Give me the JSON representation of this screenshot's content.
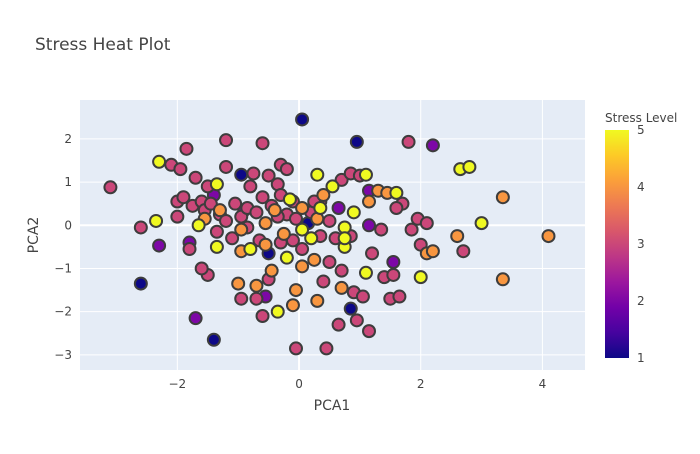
{
  "chart_data": {
    "type": "scatter",
    "title": "Stress Heat Plot",
    "xlabel": "PCA1",
    "ylabel": "PCA2",
    "xlim": [
      -3.6,
      4.7
    ],
    "ylim": [
      -3.35,
      2.9
    ],
    "xticks": [
      -2,
      0,
      2,
      4
    ],
    "yticks": [
      -3,
      -2,
      -1,
      0,
      1,
      2
    ],
    "grid": true,
    "colorbar": {
      "title": "Stress Level",
      "min": 1,
      "max": 5,
      "ticks": [
        1,
        2,
        3,
        4,
        5
      ],
      "colors": [
        "#0d0887",
        "#46039f",
        "#7201a8",
        "#9c179e",
        "#bd3786",
        "#d8576b",
        "#ed7953",
        "#fb9f3a",
        "#fdca26",
        "#f0f921"
      ]
    },
    "points": [
      {
        "x": 0.05,
        "y": 2.45,
        "stress": 1
      },
      {
        "x": 0.95,
        "y": 1.93,
        "stress": 1
      },
      {
        "x": -2.6,
        "y": -1.35,
        "stress": 1
      },
      {
        "x": -1.4,
        "y": -2.65,
        "stress": 1
      },
      {
        "x": -0.95,
        "y": 1.17,
        "stress": 1
      },
      {
        "x": -0.5,
        "y": -0.65,
        "stress": 1
      },
      {
        "x": 0.85,
        "y": -1.93,
        "stress": 1
      },
      {
        "x": 0.15,
        "y": 0.05,
        "stress": 1
      },
      {
        "x": 2.2,
        "y": 1.85,
        "stress": 2
      },
      {
        "x": -2.3,
        "y": -0.47,
        "stress": 2
      },
      {
        "x": -1.7,
        "y": -2.15,
        "stress": 2
      },
      {
        "x": 1.55,
        "y": -0.85,
        "stress": 2
      },
      {
        "x": -0.55,
        "y": -1.65,
        "stress": 2
      },
      {
        "x": 1.15,
        "y": 0.0,
        "stress": 2
      },
      {
        "x": 1.15,
        "y": 0.8,
        "stress": 2
      },
      {
        "x": -1.4,
        "y": 0.7,
        "stress": 2
      },
      {
        "x": -0.9,
        "y": 0.35,
        "stress": 2
      },
      {
        "x": -1.8,
        "y": -0.4,
        "stress": 2
      },
      {
        "x": 0.65,
        "y": 0.4,
        "stress": 2
      },
      {
        "x": -3.1,
        "y": 0.88,
        "stress": 3
      },
      {
        "x": -2.6,
        "y": -0.05,
        "stress": 3
      },
      {
        "x": -1.85,
        "y": 1.77,
        "stress": 3
      },
      {
        "x": -1.2,
        "y": 1.97,
        "stress": 3
      },
      {
        "x": -0.6,
        "y": 1.9,
        "stress": 3
      },
      {
        "x": -0.3,
        "y": 1.4,
        "stress": 3
      },
      {
        "x": -2.1,
        "y": 1.4,
        "stress": 3
      },
      {
        "x": -1.95,
        "y": 1.3,
        "stress": 3
      },
      {
        "x": -1.7,
        "y": 1.1,
        "stress": 3
      },
      {
        "x": -1.5,
        "y": 0.9,
        "stress": 3
      },
      {
        "x": -1.2,
        "y": 1.35,
        "stress": 3
      },
      {
        "x": -0.8,
        "y": 0.9,
        "stress": 3
      },
      {
        "x": -0.75,
        "y": 1.2,
        "stress": 3
      },
      {
        "x": -0.5,
        "y": 1.15,
        "stress": 3
      },
      {
        "x": -0.35,
        "y": 0.95,
        "stress": 3
      },
      {
        "x": -0.2,
        "y": 1.3,
        "stress": 3
      },
      {
        "x": -2.0,
        "y": 0.55,
        "stress": 3
      },
      {
        "x": -1.9,
        "y": 0.65,
        "stress": 3
      },
      {
        "x": -1.75,
        "y": 0.45,
        "stress": 3
      },
      {
        "x": -1.6,
        "y": 0.55,
        "stress": 3
      },
      {
        "x": -1.55,
        "y": 0.35,
        "stress": 3
      },
      {
        "x": -1.45,
        "y": 0.5,
        "stress": 3
      },
      {
        "x": -1.3,
        "y": 0.25,
        "stress": 3
      },
      {
        "x": -1.2,
        "y": 0.1,
        "stress": 3
      },
      {
        "x": -1.35,
        "y": -0.15,
        "stress": 3
      },
      {
        "x": -1.05,
        "y": 0.5,
        "stress": 3
      },
      {
        "x": -0.95,
        "y": 0.2,
        "stress": 3
      },
      {
        "x": -0.85,
        "y": 0.4,
        "stress": 3
      },
      {
        "x": -0.7,
        "y": 0.3,
        "stress": 3
      },
      {
        "x": -0.6,
        "y": 0.65,
        "stress": 3
      },
      {
        "x": -0.45,
        "y": 0.45,
        "stress": 3
      },
      {
        "x": -0.3,
        "y": 0.7,
        "stress": 3
      },
      {
        "x": -0.2,
        "y": 0.25,
        "stress": 3
      },
      {
        "x": -0.1,
        "y": 0.55,
        "stress": 3
      },
      {
        "x": -0.05,
        "y": 0.15,
        "stress": 3
      },
      {
        "x": 0.2,
        "y": 0.3,
        "stress": 3
      },
      {
        "x": 0.35,
        "y": 0.55,
        "stress": 3
      },
      {
        "x": 0.5,
        "y": 0.1,
        "stress": 3
      },
      {
        "x": 0.7,
        "y": 1.05,
        "stress": 3
      },
      {
        "x": 0.85,
        "y": 1.2,
        "stress": 3
      },
      {
        "x": 1.0,
        "y": 1.15,
        "stress": 3
      },
      {
        "x": 1.8,
        "y": 1.93,
        "stress": 3
      },
      {
        "x": 1.7,
        "y": 0.5,
        "stress": 3
      },
      {
        "x": 1.95,
        "y": 0.15,
        "stress": 3
      },
      {
        "x": 1.85,
        "y": -0.1,
        "stress": 3
      },
      {
        "x": 2.1,
        "y": 0.05,
        "stress": 3
      },
      {
        "x": 2.0,
        "y": -0.45,
        "stress": 3
      },
      {
        "x": 2.7,
        "y": -0.6,
        "stress": 3
      },
      {
        "x": 1.35,
        "y": -0.1,
        "stress": 3
      },
      {
        "x": 1.4,
        "y": -1.2,
        "stress": 3
      },
      {
        "x": 1.55,
        "y": -1.15,
        "stress": 3
      },
      {
        "x": 1.5,
        "y": -1.7,
        "stress": 3
      },
      {
        "x": 1.65,
        "y": -1.65,
        "stress": 3
      },
      {
        "x": 1.15,
        "y": -2.45,
        "stress": 3
      },
      {
        "x": 0.95,
        "y": -2.2,
        "stress": 3
      },
      {
        "x": 0.9,
        "y": -1.55,
        "stress": 3
      },
      {
        "x": 0.7,
        "y": -1.05,
        "stress": 3
      },
      {
        "x": 0.5,
        "y": -0.85,
        "stress": 3
      },
      {
        "x": 0.4,
        "y": -1.3,
        "stress": 3
      },
      {
        "x": 0.65,
        "y": -2.3,
        "stress": 3
      },
      {
        "x": 0.45,
        "y": -2.85,
        "stress": 3
      },
      {
        "x": -0.05,
        "y": -2.85,
        "stress": 3
      },
      {
        "x": -0.6,
        "y": -2.1,
        "stress": 3
      },
      {
        "x": -0.95,
        "y": -1.7,
        "stress": 3
      },
      {
        "x": -0.7,
        "y": -1.7,
        "stress": 3
      },
      {
        "x": -1.5,
        "y": -1.15,
        "stress": 3
      },
      {
        "x": -1.6,
        "y": -1.0,
        "stress": 3
      },
      {
        "x": -1.8,
        "y": -0.55,
        "stress": 3
      },
      {
        "x": -0.5,
        "y": -1.25,
        "stress": 3
      },
      {
        "x": -0.65,
        "y": -0.35,
        "stress": 3
      },
      {
        "x": -0.3,
        "y": -0.4,
        "stress": 3
      },
      {
        "x": -0.1,
        "y": -0.35,
        "stress": 3
      },
      {
        "x": 0.35,
        "y": -0.25,
        "stress": 3
      },
      {
        "x": 0.6,
        "y": -0.3,
        "stress": 3
      },
      {
        "x": 0.85,
        "y": -0.25,
        "stress": 3
      },
      {
        "x": -1.1,
        "y": -0.3,
        "stress": 3
      },
      {
        "x": -0.85,
        "y": -0.05,
        "stress": 3
      },
      {
        "x": -2.0,
        "y": 0.2,
        "stress": 3
      },
      {
        "x": 0.25,
        "y": 0.55,
        "stress": 3
      },
      {
        "x": 1.6,
        "y": 0.4,
        "stress": 3
      },
      {
        "x": 1.2,
        "y": -0.65,
        "stress": 3
      },
      {
        "x": 1.05,
        "y": -1.65,
        "stress": 3
      },
      {
        "x": -0.35,
        "y": 0.2,
        "stress": 3
      },
      {
        "x": 0.05,
        "y": -0.55,
        "stress": 3
      },
      {
        "x": -1.0,
        "y": -1.35,
        "stress": 4
      },
      {
        "x": -0.7,
        "y": -1.4,
        "stress": 4
      },
      {
        "x": -0.45,
        "y": -1.05,
        "stress": 4
      },
      {
        "x": -0.05,
        "y": -1.5,
        "stress": 4
      },
      {
        "x": -0.1,
        "y": -1.85,
        "stress": 4
      },
      {
        "x": 0.3,
        "y": -1.75,
        "stress": 4
      },
      {
        "x": 0.7,
        "y": -1.45,
        "stress": 4
      },
      {
        "x": 0.25,
        "y": -0.8,
        "stress": 4
      },
      {
        "x": 0.05,
        "y": -0.95,
        "stress": 4
      },
      {
        "x": -0.95,
        "y": -0.6,
        "stress": 4
      },
      {
        "x": -0.55,
        "y": -0.45,
        "stress": 4
      },
      {
        "x": -0.25,
        "y": -0.2,
        "stress": 4
      },
      {
        "x": 0.05,
        "y": 0.4,
        "stress": 4
      },
      {
        "x": 0.4,
        "y": 0.7,
        "stress": 4
      },
      {
        "x": 1.3,
        "y": 0.8,
        "stress": 4
      },
      {
        "x": 1.15,
        "y": 0.55,
        "stress": 4
      },
      {
        "x": 1.45,
        "y": 0.75,
        "stress": 4
      },
      {
        "x": 2.1,
        "y": -0.65,
        "stress": 4
      },
      {
        "x": 2.2,
        "y": -0.6,
        "stress": 4
      },
      {
        "x": 2.6,
        "y": -0.25,
        "stress": 4
      },
      {
        "x": 3.35,
        "y": 0.65,
        "stress": 4
      },
      {
        "x": 3.35,
        "y": -1.25,
        "stress": 4
      },
      {
        "x": 4.1,
        "y": -0.25,
        "stress": 4
      },
      {
        "x": -0.55,
        "y": 0.05,
        "stress": 4
      },
      {
        "x": -1.3,
        "y": 0.35,
        "stress": 4
      },
      {
        "x": -1.55,
        "y": 0.15,
        "stress": 4
      },
      {
        "x": -0.95,
        "y": -0.1,
        "stress": 4
      },
      {
        "x": 0.3,
        "y": 0.15,
        "stress": 4
      },
      {
        "x": -0.4,
        "y": 0.35,
        "stress": 4
      },
      {
        "x": -2.3,
        "y": 1.47,
        "stress": 5
      },
      {
        "x": -2.35,
        "y": 0.1,
        "stress": 5
      },
      {
        "x": -1.65,
        "y": 0.0,
        "stress": 5
      },
      {
        "x": -1.35,
        "y": 0.95,
        "stress": 5
      },
      {
        "x": -1.35,
        "y": -0.5,
        "stress": 5
      },
      {
        "x": -0.8,
        "y": -0.55,
        "stress": 5
      },
      {
        "x": -0.35,
        "y": -2.0,
        "stress": 5
      },
      {
        "x": -0.2,
        "y": -0.75,
        "stress": 5
      },
      {
        "x": 0.05,
        "y": -0.1,
        "stress": 5
      },
      {
        "x": 0.3,
        "y": 1.17,
        "stress": 5
      },
      {
        "x": 0.55,
        "y": 0.9,
        "stress": 5
      },
      {
        "x": 0.75,
        "y": -0.05,
        "stress": 5
      },
      {
        "x": 0.75,
        "y": -0.5,
        "stress": 5
      },
      {
        "x": 0.75,
        "y": -0.3,
        "stress": 5
      },
      {
        "x": 0.9,
        "y": 0.3,
        "stress": 5
      },
      {
        "x": 1.1,
        "y": 1.17,
        "stress": 5
      },
      {
        "x": 1.1,
        "y": -1.1,
        "stress": 5
      },
      {
        "x": 1.6,
        "y": 0.75,
        "stress": 5
      },
      {
        "x": 2.0,
        "y": -1.2,
        "stress": 5
      },
      {
        "x": 2.65,
        "y": 1.3,
        "stress": 5
      },
      {
        "x": 2.8,
        "y": 1.35,
        "stress": 5
      },
      {
        "x": 3.0,
        "y": 0.05,
        "stress": 5
      },
      {
        "x": 0.2,
        "y": -0.3,
        "stress": 5
      },
      {
        "x": -0.15,
        "y": 0.6,
        "stress": 5
      },
      {
        "x": 0.35,
        "y": 0.4,
        "stress": 5
      }
    ]
  }
}
